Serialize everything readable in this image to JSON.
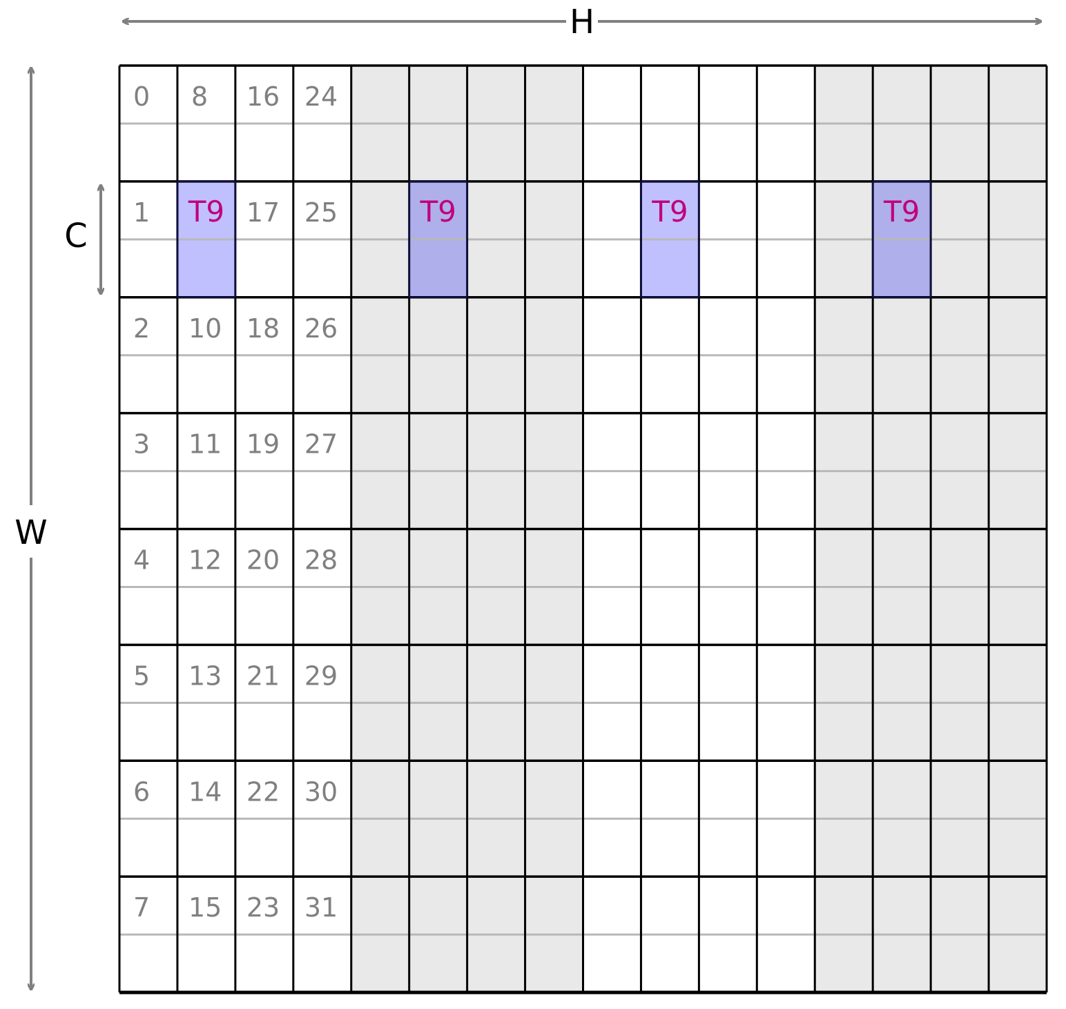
{
  "dimensions": {
    "horizontal": "H",
    "vertical": "W",
    "row_height": "C"
  },
  "grid": {
    "columns": 16,
    "rows": 8,
    "shaded_column_groups": [
      [
        4,
        7
      ],
      [
        12,
        15
      ]
    ],
    "cell_labels": [
      [
        "0",
        "8",
        "16",
        "24"
      ],
      [
        "1",
        "",
        "17",
        "25"
      ],
      [
        "2",
        "10",
        "18",
        "26"
      ],
      [
        "3",
        "11",
        "19",
        "27"
      ],
      [
        "4",
        "12",
        "20",
        "28"
      ],
      [
        "5",
        "13",
        "21",
        "29"
      ],
      [
        "6",
        "14",
        "22",
        "30"
      ],
      [
        "7",
        "15",
        "23",
        "31"
      ]
    ],
    "highlight": {
      "row": 1,
      "columns": [
        1,
        5,
        9,
        13
      ],
      "label": "T9"
    }
  },
  "colors": {
    "shade": "#e9e9e9",
    "highlight_on_white": "#c0c0ff",
    "highlight_on_shade": "#afafeb",
    "highlight_text": "#c0007a",
    "label_text": "#808080",
    "arrow": "#808080",
    "grid_line": "#000000",
    "subrow_line": "#b8b8b8"
  }
}
